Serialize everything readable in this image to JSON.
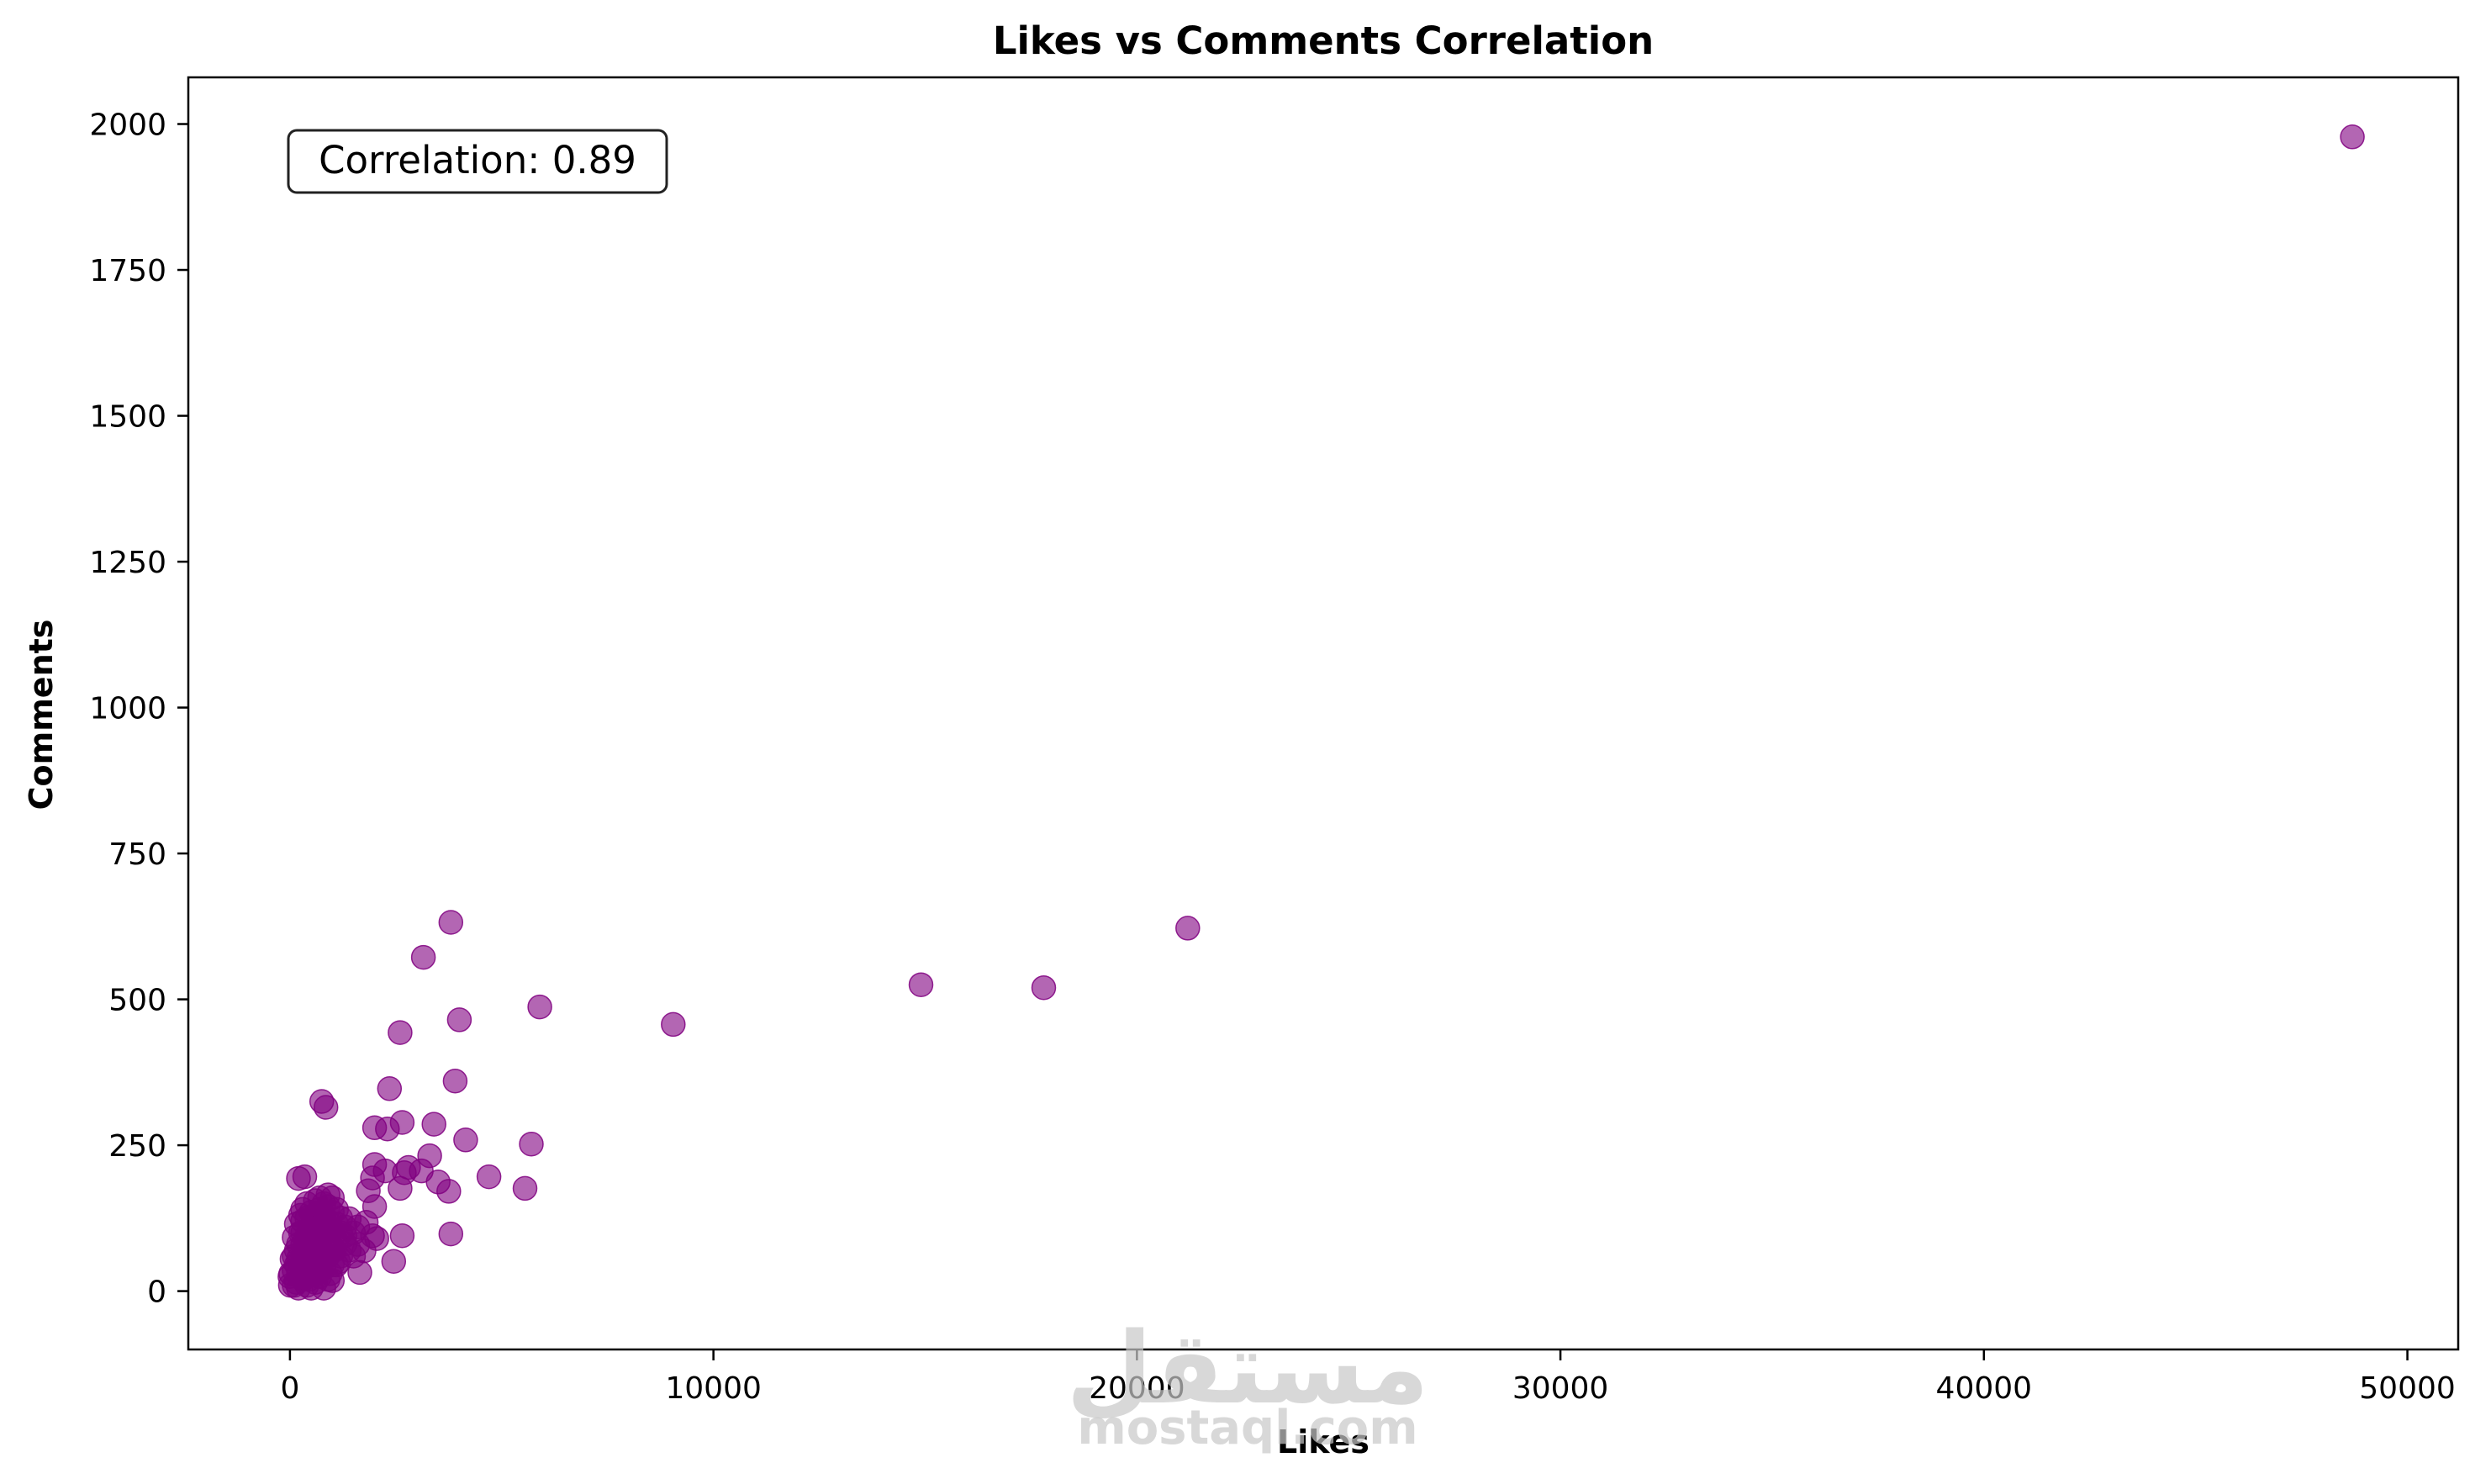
{
  "chart_data": {
    "type": "scatter",
    "title": "Likes vs Comments Correlation",
    "xlabel": "Likes",
    "ylabel": "Comments",
    "xlim": [
      -2400,
      51200
    ],
    "ylim": [
      -100,
      2080
    ],
    "xticks": [
      0,
      10000,
      20000,
      30000,
      40000,
      50000
    ],
    "yticks": [
      0,
      250,
      500,
      750,
      1000,
      1250,
      1500,
      1750,
      2000
    ],
    "grid": false,
    "marker_color": "#800080",
    "marker_alpha": 0.6,
    "annotation": "Correlation: 0.89",
    "annotation_position": "top-left",
    "points": [
      [
        48700,
        1978
      ],
      [
        21200,
        622
      ],
      [
        17800,
        520
      ],
      [
        14900,
        525
      ],
      [
        9050,
        457
      ],
      [
        5900,
        487
      ],
      [
        5700,
        252
      ],
      [
        5550,
        176
      ],
      [
        4700,
        196
      ],
      [
        4150,
        259
      ],
      [
        4000,
        465
      ],
      [
        3900,
        360
      ],
      [
        3800,
        632
      ],
      [
        3800,
        98
      ],
      [
        3750,
        171
      ],
      [
        3500,
        187
      ],
      [
        3400,
        286
      ],
      [
        3300,
        232
      ],
      [
        3150,
        572
      ],
      [
        3100,
        206
      ],
      [
        2800,
        212
      ],
      [
        2700,
        203
      ],
      [
        2650,
        289
      ],
      [
        2600,
        443
      ],
      [
        2600,
        176
      ],
      [
        2650,
        95
      ],
      [
        2450,
        51
      ],
      [
        2350,
        347
      ],
      [
        2300,
        278
      ],
      [
        2250,
        206
      ],
      [
        2000,
        280
      ],
      [
        2000,
        217
      ],
      [
        1950,
        194
      ],
      [
        2000,
        145
      ],
      [
        1950,
        95
      ],
      [
        2050,
        90
      ],
      [
        1850,
        172
      ],
      [
        1800,
        118
      ],
      [
        1750,
        69
      ],
      [
        1650,
        32
      ],
      [
        1600,
        80
      ],
      [
        1500,
        100
      ],
      [
        1400,
        124
      ],
      [
        1300,
        81
      ],
      [
        1200,
        60
      ],
      [
        1100,
        45
      ],
      [
        1000,
        18
      ],
      [
        1000,
        135
      ],
      [
        900,
        165
      ],
      [
        850,
        315
      ],
      [
        750,
        325
      ],
      [
        700,
        160
      ],
      [
        350,
        196
      ],
      [
        200,
        193
      ],
      [
        150,
        115
      ],
      [
        100,
        92
      ],
      [
        50,
        55
      ],
      [
        20,
        30
      ],
      [
        10,
        10
      ],
      [
        0,
        25
      ],
      [
        300,
        20
      ],
      [
        300,
        40
      ],
      [
        300,
        60
      ],
      [
        300,
        80
      ],
      [
        300,
        100
      ],
      [
        300,
        120
      ],
      [
        300,
        140
      ],
      [
        400,
        10
      ],
      [
        400,
        35
      ],
      [
        400,
        65
      ],
      [
        400,
        95
      ],
      [
        400,
        125
      ],
      [
        400,
        150
      ],
      [
        500,
        5
      ],
      [
        500,
        30
      ],
      [
        500,
        55
      ],
      [
        500,
        85
      ],
      [
        500,
        110
      ],
      [
        500,
        135
      ],
      [
        600,
        15
      ],
      [
        600,
        45
      ],
      [
        600,
        75
      ],
      [
        600,
        105
      ],
      [
        600,
        130
      ],
      [
        600,
        155
      ],
      [
        700,
        25
      ],
      [
        700,
        50
      ],
      [
        700,
        80
      ],
      [
        700,
        115
      ],
      [
        700,
        140
      ],
      [
        800,
        5
      ],
      [
        800,
        40
      ],
      [
        800,
        70
      ],
      [
        800,
        100
      ],
      [
        800,
        130
      ],
      [
        800,
        150
      ],
      [
        900,
        20
      ],
      [
        900,
        60
      ],
      [
        900,
        90
      ],
      [
        900,
        120
      ],
      [
        900,
        145
      ],
      [
        1000,
        45
      ],
      [
        1000,
        75
      ],
      [
        1000,
        105
      ],
      [
        1000,
        160
      ],
      [
        1100,
        85
      ],
      [
        1100,
        115
      ],
      [
        1100,
        140
      ],
      [
        1200,
        100
      ],
      [
        1200,
        125
      ],
      [
        1300,
        95
      ],
      [
        1300,
        110
      ],
      [
        1400,
        70
      ],
      [
        1500,
        60
      ],
      [
        1600,
        110
      ],
      [
        200,
        5
      ],
      [
        200,
        30
      ],
      [
        200,
        55
      ],
      [
        200,
        80
      ],
      [
        150,
        15
      ],
      [
        150,
        45
      ],
      [
        150,
        70
      ],
      [
        100,
        10
      ],
      [
        100,
        35
      ],
      [
        100,
        60
      ],
      [
        250,
        100
      ],
      [
        250,
        130
      ],
      [
        350,
        50
      ],
      [
        350,
        75
      ],
      [
        450,
        100
      ],
      [
        450,
        20
      ],
      [
        550,
        70
      ],
      [
        650,
        90
      ],
      [
        750,
        60
      ],
      [
        850,
        110
      ],
      [
        950,
        30
      ],
      [
        1050,
        70
      ],
      [
        1150,
        50
      ]
    ]
  },
  "watermark": {
    "logo_text": "مستقل",
    "site_text": "mostaql.com"
  }
}
